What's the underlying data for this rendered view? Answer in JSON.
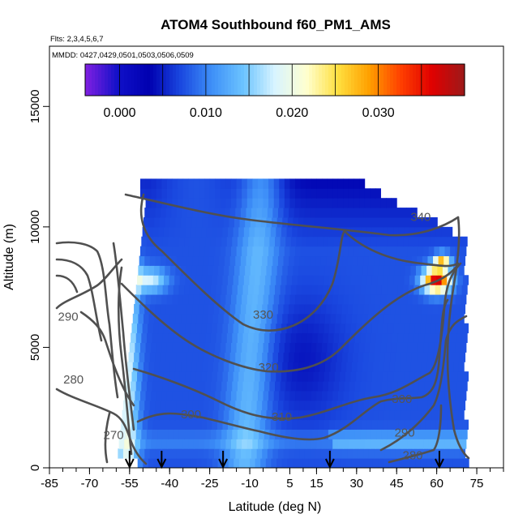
{
  "chart_data": {
    "type": "heatmap",
    "title": "ATOM4 Southbound f60_PM1_AMS",
    "subtitle_flights": "Flts: 2,3,4,5,6,7",
    "subtitle_dates": "MMDD: 0427,0429,0501,0503,0506,0509",
    "xlabel": "Latitude (deg N)",
    "ylabel": "Altitude (m)",
    "xlim": [
      -85,
      85
    ],
    "ylim": [
      0,
      17500
    ],
    "xticks": [
      -85,
      -70,
      -55,
      -40,
      -25,
      -10,
      5,
      15,
      30,
      45,
      60,
      75
    ],
    "yticks": [
      0,
      5000,
      10000,
      15000
    ],
    "colorbar": {
      "range": [
        -0.004,
        0.04
      ],
      "ticks": [
        0.0,
        0.01,
        0.02,
        0.03
      ],
      "tick_labels": [
        "0.000",
        "0.010",
        "0.020",
        "0.030"
      ],
      "colors": [
        "#7b1fe0",
        "#1010c8",
        "#0000b0",
        "#1a48e0",
        "#3e90f8",
        "#6cc4ff",
        "#d8f4ff",
        "#ffffd0",
        "#ffe040",
        "#ffa000",
        "#ff4000",
        "#e00000",
        "#a01818"
      ]
    },
    "contour_labels": [
      {
        "label": "340",
        "lat": 54,
        "alt": 10250
      },
      {
        "label": "330",
        "lat": -5,
        "alt": 6200
      },
      {
        "label": "320",
        "lat": -3,
        "alt": 4000
      },
      {
        "label": "310",
        "lat": 2,
        "alt": 1950
      },
      {
        "label": "300",
        "lat": -32,
        "alt": 2050
      },
      {
        "label": "300",
        "lat": 47,
        "alt": 2700
      },
      {
        "label": "290",
        "lat": -78,
        "alt": 6100
      },
      {
        "label": "290",
        "lat": 48,
        "alt": 1300
      },
      {
        "label": "280",
        "lat": -76,
        "alt": 3500
      },
      {
        "label": "280",
        "lat": 51,
        "alt": 350
      },
      {
        "label": "270",
        "lat": -61,
        "alt": 1200
      }
    ],
    "arrow_latitudes": [
      -55,
      -43,
      -20,
      20,
      61
    ]
  }
}
